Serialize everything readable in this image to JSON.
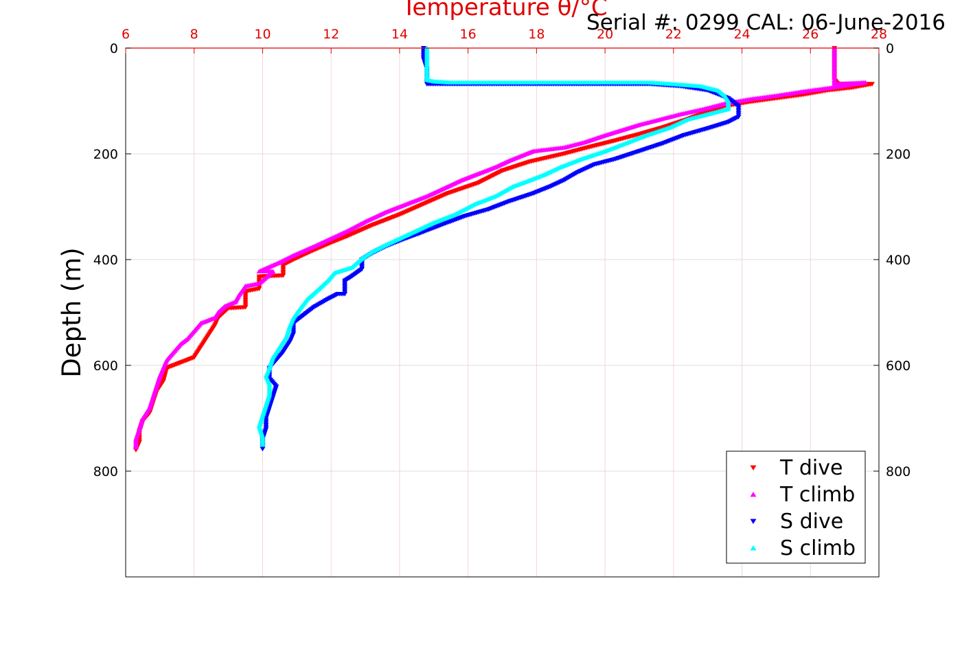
{
  "chart_data": {
    "type": "scatter",
    "title": "Temperature θ/°C",
    "subtitle": "Serial #: 0299 CAL: 06-June-2016",
    "xlabel": "Temperature θ/°C",
    "ylabel": "Depth (m)",
    "x_axis_position": "top",
    "y_reversed": true,
    "xlim": [
      6,
      28
    ],
    "ylim": [
      0,
      1000
    ],
    "xticks": [
      "6",
      "8",
      "10",
      "12",
      "14",
      "16",
      "18",
      "20",
      "22",
      "24",
      "26",
      "28"
    ],
    "yticks": [
      "0",
      "200",
      "400",
      "600",
      "800"
    ],
    "grid": true,
    "legend_position": "bottom-right",
    "series": [
      {
        "name": "T dive",
        "marker": "triangle-down",
        "color": "#ff0000",
        "points": [
          [
            26.7,
            0
          ],
          [
            26.7,
            20
          ],
          [
            26.7,
            40
          ],
          [
            26.7,
            60
          ],
          [
            26.8,
            68
          ],
          [
            27.8,
            68
          ],
          [
            27.2,
            75
          ],
          [
            26.5,
            80
          ],
          [
            25.8,
            88
          ],
          [
            25.0,
            95
          ],
          [
            24.2,
            102
          ],
          [
            23.5,
            110
          ],
          [
            23.0,
            120
          ],
          [
            22.4,
            135
          ],
          [
            21.7,
            150
          ],
          [
            21.0,
            163
          ],
          [
            20.3,
            175
          ],
          [
            19.5,
            188
          ],
          [
            18.8,
            200
          ],
          [
            17.8,
            215
          ],
          [
            17.0,
            232
          ],
          [
            16.3,
            255
          ],
          [
            15.4,
            275
          ],
          [
            14.7,
            295
          ],
          [
            14.0,
            315
          ],
          [
            13.2,
            335
          ],
          [
            12.5,
            355
          ],
          [
            12.0,
            368
          ],
          [
            11.4,
            385
          ],
          [
            10.9,
            400
          ],
          [
            10.6,
            410
          ],
          [
            10.6,
            430
          ],
          [
            9.9,
            432
          ],
          [
            9.9,
            455
          ],
          [
            9.5,
            460
          ],
          [
            9.5,
            490
          ],
          [
            9.0,
            492
          ],
          [
            8.7,
            510
          ],
          [
            8.6,
            525
          ],
          [
            8.4,
            545
          ],
          [
            8.2,
            565
          ],
          [
            8.0,
            585
          ],
          [
            7.6,
            595
          ],
          [
            7.2,
            605
          ],
          [
            7.1,
            630
          ],
          [
            6.9,
            650
          ],
          [
            6.8,
            670
          ],
          [
            6.7,
            690
          ],
          [
            6.5,
            705
          ],
          [
            6.4,
            725
          ],
          [
            6.4,
            745
          ],
          [
            6.3,
            760
          ]
        ]
      },
      {
        "name": "T climb",
        "marker": "triangle-up",
        "color": "#ff00ff",
        "points": [
          [
            26.7,
            0
          ],
          [
            26.7,
            20
          ],
          [
            26.7,
            40
          ],
          [
            26.7,
            60
          ],
          [
            26.7,
            68
          ],
          [
            27.6,
            65
          ],
          [
            26.6,
            75
          ],
          [
            25.8,
            82
          ],
          [
            25.0,
            90
          ],
          [
            24.2,
            97
          ],
          [
            23.5,
            105
          ],
          [
            22.9,
            115
          ],
          [
            22.2,
            125
          ],
          [
            21.6,
            135
          ],
          [
            21.0,
            145
          ],
          [
            20.5,
            155
          ],
          [
            20.0,
            165
          ],
          [
            19.4,
            178
          ],
          [
            18.8,
            188
          ],
          [
            17.9,
            195
          ],
          [
            17.7,
            200
          ],
          [
            17.2,
            213
          ],
          [
            16.8,
            225
          ],
          [
            16.2,
            240
          ],
          [
            15.8,
            250
          ],
          [
            15.3,
            265
          ],
          [
            14.8,
            280
          ],
          [
            14.2,
            295
          ],
          [
            13.6,
            310
          ],
          [
            13.0,
            328
          ],
          [
            12.5,
            345
          ],
          [
            12.0,
            360
          ],
          [
            11.5,
            375
          ],
          [
            10.9,
            392
          ],
          [
            10.5,
            405
          ],
          [
            9.9,
            422
          ],
          [
            10.3,
            422
          ],
          [
            10.2,
            428
          ],
          [
            9.9,
            445
          ],
          [
            9.5,
            450
          ],
          [
            9.3,
            468
          ],
          [
            9.2,
            480
          ],
          [
            8.9,
            488
          ],
          [
            8.7,
            500
          ],
          [
            8.6,
            510
          ],
          [
            8.2,
            520
          ],
          [
            8.0,
            535
          ],
          [
            7.8,
            550
          ],
          [
            7.6,
            560
          ],
          [
            7.4,
            575
          ],
          [
            7.2,
            590
          ],
          [
            7.1,
            605
          ],
          [
            7.0,
            620
          ],
          [
            6.9,
            640
          ],
          [
            6.8,
            660
          ],
          [
            6.7,
            680
          ],
          [
            6.5,
            700
          ],
          [
            6.4,
            720
          ],
          [
            6.3,
            740
          ],
          [
            6.3,
            755
          ]
        ]
      },
      {
        "name": "S dive",
        "marker": "triangle-down",
        "color": "#0000ff",
        "points": [
          [
            14.7,
            0
          ],
          [
            14.7,
            20
          ],
          [
            14.8,
            40
          ],
          [
            14.8,
            60
          ],
          [
            14.8,
            68
          ],
          [
            16.0,
            68
          ],
          [
            21.3,
            68
          ],
          [
            22.2,
            72
          ],
          [
            23.0,
            80
          ],
          [
            23.6,
            95
          ],
          [
            23.9,
            110
          ],
          [
            23.9,
            130
          ],
          [
            23.6,
            140
          ],
          [
            23.0,
            152
          ],
          [
            22.3,
            165
          ],
          [
            21.7,
            180
          ],
          [
            21.0,
            195
          ],
          [
            20.3,
            210
          ],
          [
            19.7,
            220
          ],
          [
            19.2,
            235
          ],
          [
            18.8,
            250
          ],
          [
            18.4,
            262
          ],
          [
            17.9,
            275
          ],
          [
            17.2,
            290
          ],
          [
            16.6,
            305
          ],
          [
            15.9,
            318
          ],
          [
            15.2,
            335
          ],
          [
            14.6,
            350
          ],
          [
            14.1,
            362
          ],
          [
            13.6,
            375
          ],
          [
            13.2,
            388
          ],
          [
            12.9,
            400
          ],
          [
            12.9,
            418
          ],
          [
            12.6,
            432
          ],
          [
            12.4,
            440
          ],
          [
            12.4,
            465
          ],
          [
            12.2,
            465
          ],
          [
            11.9,
            475
          ],
          [
            11.5,
            490
          ],
          [
            11.2,
            505
          ],
          [
            10.9,
            520
          ],
          [
            10.9,
            540
          ],
          [
            10.8,
            555
          ],
          [
            10.6,
            575
          ],
          [
            10.4,
            590
          ],
          [
            10.2,
            605
          ],
          [
            10.2,
            625
          ],
          [
            10.4,
            640
          ],
          [
            10.3,
            660
          ],
          [
            10.2,
            680
          ],
          [
            10.1,
            700
          ],
          [
            10.1,
            720
          ],
          [
            10.0,
            740
          ],
          [
            10.0,
            758
          ]
        ]
      },
      {
        "name": "S climb",
        "marker": "triangle-up",
        "color": "#00ffff",
        "points": [
          [
            14.8,
            0
          ],
          [
            14.8,
            20
          ],
          [
            14.8,
            40
          ],
          [
            14.8,
            60
          ],
          [
            15.0,
            63
          ],
          [
            15.5,
            65
          ],
          [
            19.2,
            65
          ],
          [
            21.3,
            65
          ],
          [
            22.0,
            68
          ],
          [
            22.8,
            72
          ],
          [
            23.3,
            80
          ],
          [
            23.5,
            90
          ],
          [
            23.6,
            100
          ],
          [
            23.6,
            115
          ],
          [
            23.0,
            125
          ],
          [
            22.4,
            135
          ],
          [
            21.9,
            150
          ],
          [
            21.2,
            165
          ],
          [
            20.6,
            180
          ],
          [
            20.0,
            195
          ],
          [
            19.3,
            210
          ],
          [
            18.7,
            225
          ],
          [
            18.2,
            240
          ],
          [
            17.8,
            250
          ],
          [
            17.3,
            262
          ],
          [
            16.8,
            280
          ],
          [
            16.2,
            295
          ],
          [
            15.6,
            315
          ],
          [
            15.0,
            330
          ],
          [
            14.5,
            345
          ],
          [
            14.0,
            360
          ],
          [
            13.6,
            372
          ],
          [
            13.2,
            385
          ],
          [
            12.9,
            398
          ],
          [
            12.6,
            415
          ],
          [
            12.1,
            425
          ],
          [
            11.9,
            440
          ],
          [
            11.6,
            458
          ],
          [
            11.3,
            475
          ],
          [
            11.1,
            492
          ],
          [
            10.9,
            510
          ],
          [
            10.8,
            525
          ],
          [
            10.7,
            545
          ],
          [
            10.5,
            565
          ],
          [
            10.3,
            585
          ],
          [
            10.2,
            605
          ],
          [
            10.1,
            620
          ],
          [
            10.2,
            635
          ],
          [
            10.2,
            655
          ],
          [
            10.1,
            675
          ],
          [
            10.0,
            695
          ],
          [
            9.9,
            715
          ],
          [
            10.0,
            735
          ],
          [
            10.0,
            750
          ]
        ]
      }
    ]
  }
}
